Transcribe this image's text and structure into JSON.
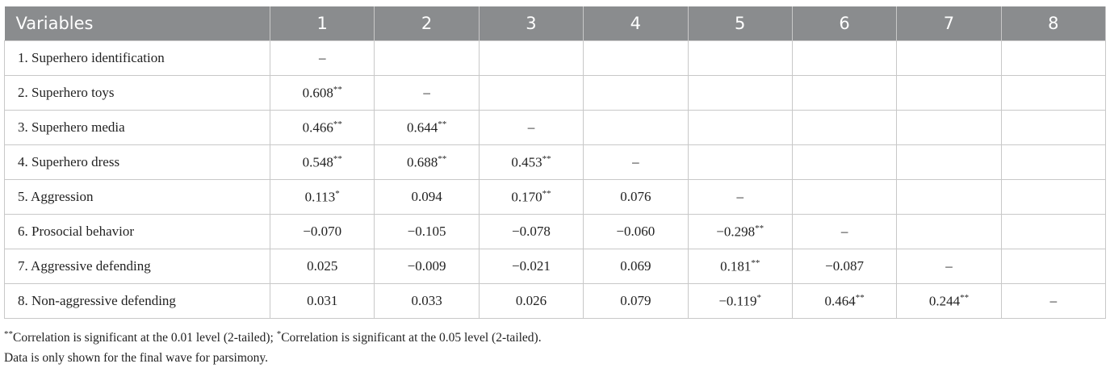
{
  "table": {
    "header": [
      "Variables",
      "1",
      "2",
      "3",
      "4",
      "5",
      "6",
      "7",
      "8"
    ],
    "rows": [
      [
        {
          "text": "1. Superhero identification"
        },
        {
          "text": "–"
        },
        null,
        null,
        null,
        null,
        null,
        null,
        null
      ],
      [
        {
          "text": "2. Superhero toys"
        },
        {
          "text": "0.608",
          "sup": "**"
        },
        {
          "text": "–"
        },
        null,
        null,
        null,
        null,
        null,
        null
      ],
      [
        {
          "text": "3. Superhero media"
        },
        {
          "text": "0.466",
          "sup": "**"
        },
        {
          "text": "0.644",
          "sup": "**"
        },
        {
          "text": "–"
        },
        null,
        null,
        null,
        null,
        null
      ],
      [
        {
          "text": "4. Superhero dress"
        },
        {
          "text": "0.548",
          "sup": "**"
        },
        {
          "text": "0.688",
          "sup": "**"
        },
        {
          "text": "0.453",
          "sup": "**"
        },
        {
          "text": "–"
        },
        null,
        null,
        null,
        null
      ],
      [
        {
          "text": "5. Aggression"
        },
        {
          "text": "0.113",
          "sup": "*"
        },
        {
          "text": "0.094"
        },
        {
          "text": "0.170",
          "sup": "**"
        },
        {
          "text": "0.076"
        },
        {
          "text": "–"
        },
        null,
        null,
        null
      ],
      [
        {
          "text": "6. Prosocial behavior"
        },
        {
          "text": "−0.070"
        },
        {
          "text": "−0.105"
        },
        {
          "text": "−0.078"
        },
        {
          "text": "−0.060"
        },
        {
          "text": "−0.298",
          "sup": "**"
        },
        {
          "text": "–"
        },
        null,
        null
      ],
      [
        {
          "text": "7. Aggressive defending"
        },
        {
          "text": "0.025"
        },
        {
          "text": "−0.009"
        },
        {
          "text": "−0.021"
        },
        {
          "text": "0.069"
        },
        {
          "text": "0.181",
          "sup": "**"
        },
        {
          "text": "−0.087"
        },
        {
          "text": "–"
        },
        null
      ],
      [
        {
          "text": "8. Non-aggressive defending"
        },
        {
          "text": "0.031"
        },
        {
          "text": "0.033"
        },
        {
          "text": "0.026"
        },
        {
          "text": "0.079"
        },
        {
          "text": "−0.119",
          "sup": "*"
        },
        {
          "text": "0.464",
          "sup": "**"
        },
        {
          "text": "0.244",
          "sup": "**"
        },
        {
          "text": "–"
        }
      ]
    ]
  },
  "notes": [
    [
      {
        "sup": "**"
      },
      {
        "text": "Correlation is significant at the 0.01 level (2-tailed); "
      },
      {
        "sup": "*"
      },
      {
        "text": "Correlation is significant at the 0.05 level (2-tailed)."
      }
    ],
    [
      {
        "text": "Data is only shown for the final wave for parsimony."
      }
    ]
  ]
}
